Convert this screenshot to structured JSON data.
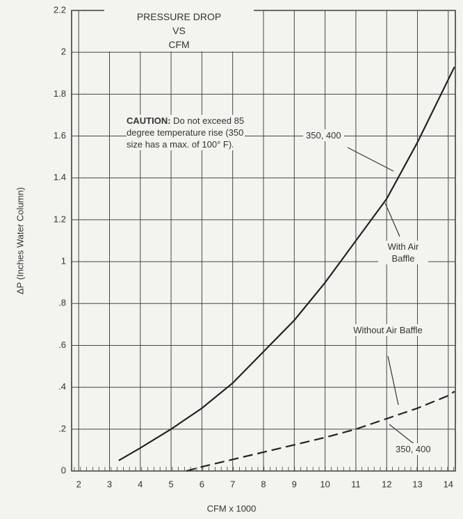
{
  "chart_data": {
    "type": "line",
    "title": "PRESSURE DROP\nVS\nCFM",
    "x_label": "CFM x 1000",
    "y_label": "ΔP (Inches Water Column)",
    "caution_heading": "CAUTION:",
    "caution_text": " Do not exceed 85 degree temperature rise (350 size has a max. of 100° F).",
    "annotations": [
      "350, 400",
      "350, 400"
    ],
    "grid": true,
    "xlim": [
      1.77,
      14.23
    ],
    "ylim": [
      0,
      2.2
    ],
    "xticks": [
      2,
      3,
      4,
      5,
      6,
      7,
      8,
      9,
      10,
      11,
      12,
      13,
      14
    ],
    "yticks": [
      0,
      {
        "value": 0.2,
        "label": ".2"
      },
      {
        "value": 0.4,
        "label": ".4"
      },
      {
        "value": 0.6,
        "label": ".6"
      },
      {
        "value": 0.8,
        "label": ".8"
      },
      1,
      1.2,
      1.4,
      1.6,
      1.8,
      2,
      2.2
    ],
    "series": [
      {
        "name": "With Air Baffle",
        "color": "#222222",
        "dashed": false,
        "x": [
          3.3,
          4,
          5,
          6,
          7,
          8,
          9,
          10,
          11,
          12,
          13,
          14,
          14.2
        ],
        "values": [
          0.05,
          0.11,
          0.2,
          0.3,
          0.42,
          0.57,
          0.72,
          0.9,
          1.1,
          1.3,
          1.57,
          1.87,
          1.93
        ]
      },
      {
        "name": "Without Air Baffle",
        "color": "#222222",
        "dashed": true,
        "x": [
          5.5,
          6,
          7,
          8,
          9,
          10,
          11,
          12,
          13,
          14,
          14.2
        ],
        "values": [
          0,
          0.02,
          0.055,
          0.09,
          0.125,
          0.16,
          0.2,
          0.25,
          0.3,
          0.36,
          0.38
        ]
      }
    ]
  }
}
